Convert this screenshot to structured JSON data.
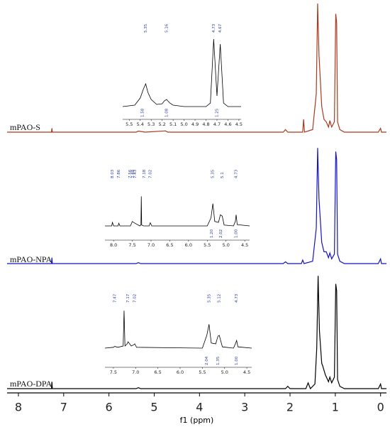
{
  "chart_data": [
    {
      "type": "line",
      "xlim": [
        8.25,
        -0.13
      ],
      "ylim": [
        0,
        100
      ],
      "series": [
        {
          "name": "mPAO-S",
          "color": "#a83a1e",
          "x": [
            8.25,
            7.27,
            7.26,
            7.25,
            5.4,
            5.35,
            5.2,
            4.75,
            4.7,
            2.15,
            2.1,
            2.05,
            1.72,
            1.7,
            1.68,
            1.5,
            1.42,
            1.39,
            1.36,
            1.3,
            1.25,
            1.2,
            1.15,
            1.12,
            1.08,
            1.02,
            0.99,
            0.97,
            0.95,
            0.9,
            0.8,
            0.05,
            0.0,
            -0.02,
            -0.13
          ],
          "values": [
            0,
            0,
            3,
            0,
            0,
            0.8,
            0,
            1,
            0,
            0,
            2,
            0,
            0,
            10,
            0,
            2,
            30,
            100,
            60,
            20,
            10,
            8,
            4,
            9,
            4,
            8,
            92,
            85,
            8,
            2,
            0,
            0,
            3,
            0,
            0
          ]
        }
      ]
    },
    {
      "type": "line",
      "xlim": [
        8.25,
        -0.13
      ],
      "ylim": [
        0,
        100
      ],
      "series": [
        {
          "name": "mPAO-NPA",
          "color": "#1414c0",
          "x": [
            8.25,
            7.27,
            7.26,
            7.25,
            5.4,
            5.35,
            5.3,
            2.15,
            2.1,
            2.05,
            1.75,
            1.72,
            1.69,
            1.5,
            1.42,
            1.39,
            1.36,
            1.3,
            1.25,
            1.2,
            1.15,
            1.12,
            1.08,
            1.02,
            0.99,
            0.97,
            0.95,
            0.9,
            0.8,
            0.05,
            0.0,
            -0.02,
            -0.13
          ],
          "values": [
            0,
            0,
            5,
            0,
            0,
            0.8,
            0,
            0,
            1.5,
            0,
            0,
            3,
            0,
            2,
            30,
            98,
            55,
            18,
            10,
            10,
            5,
            9,
            4,
            8,
            95,
            88,
            8,
            2,
            0,
            0,
            4,
            0,
            0
          ]
        }
      ]
    },
    {
      "type": "line",
      "xlim": [
        8.25,
        -0.13
      ],
      "ylim": [
        0,
        100
      ],
      "xticks": [
        8,
        7,
        6,
        5,
        4,
        3,
        2,
        1,
        0
      ],
      "xlabel": "f1 (ppm)",
      "series": [
        {
          "name": "mPAO-DPA",
          "color": "#000000",
          "x": [
            8.25,
            7.27,
            7.26,
            7.25,
            5.4,
            5.35,
            5.3,
            2.1,
            2.05,
            2.0,
            1.65,
            1.6,
            1.55,
            1.45,
            1.41,
            1.38,
            1.35,
            1.3,
            1.28,
            1.22,
            1.15,
            1.12,
            1.08,
            1.02,
            0.99,
            0.97,
            0.95,
            0.9,
            0.8,
            0.05,
            0.0,
            -0.02,
            -0.13
          ],
          "values": [
            0,
            0,
            6,
            0,
            0,
            0.8,
            0,
            0,
            2,
            0,
            0,
            5,
            0,
            4,
            35,
            98,
            50,
            22,
            20,
            12,
            6,
            10,
            5,
            10,
            91,
            85,
            8,
            2,
            0,
            0,
            4,
            0,
            0
          ]
        }
      ]
    },
    {
      "type": "line",
      "xlim": [
        5.56,
        4.48
      ],
      "ylim": [
        0,
        100
      ],
      "xticks": [
        5.5,
        5.4,
        5.3,
        5.2,
        5.1,
        {
          "value": 5,
          "label": "5.0"
        },
        4.9,
        4.8,
        4.7,
        4.6,
        4.5
      ],
      "peak_labels": [
        5.35,
        5.16,
        4.73,
        4.67
      ],
      "integrals": [
        {
          "x": 5.38,
          "label": "1.58"
        },
        {
          "x": 5.16,
          "label": "1.08"
        },
        {
          "x": 4.7,
          "label": "1.25"
        }
      ],
      "series": [
        {
          "color": "#000000",
          "x": [
            5.56,
            5.45,
            5.4,
            5.37,
            5.35,
            5.33,
            5.3,
            5.25,
            5.2,
            5.18,
            5.16,
            5.13,
            5.1,
            5.0,
            4.8,
            4.76,
            4.73,
            4.7,
            4.67,
            4.64,
            4.6,
            4.48
          ],
          "values": [
            0,
            2,
            12,
            25,
            32,
            20,
            10,
            3,
            4,
            8,
            10,
            5,
            2,
            0,
            0,
            5,
            95,
            15,
            88,
            5,
            0,
            0
          ]
        }
      ]
    },
    {
      "type": "line",
      "xlim": [
        8.23,
        4.37
      ],
      "ylim": [
        0,
        100
      ],
      "xticks": [
        {
          "value": 8,
          "label": "8.0"
        },
        7.5,
        {
          "value": 7,
          "label": "7.0"
        },
        6.5,
        {
          "value": 6,
          "label": "6.0"
        },
        5.5,
        {
          "value": 5,
          "label": "5.0"
        },
        4.5
      ],
      "peak_labels": [
        8.03,
        7.86,
        7.56,
        7.48,
        7.43,
        7.18,
        7.02,
        5.35,
        5.1,
        4.73
      ],
      "integrals": [
        {
          "x": 5.38,
          "label": "1.20"
        },
        {
          "x": 5.14,
          "label": "2.02"
        },
        {
          "x": 4.73,
          "label": "1.00"
        }
      ],
      "series": [
        {
          "color": "#000000",
          "x": [
            8.23,
            8.05,
            8.03,
            8.0,
            7.88,
            7.86,
            7.83,
            7.55,
            7.5,
            7.45,
            7.3,
            7.27,
            7.26,
            7.25,
            7.2,
            7.05,
            7.02,
            6.98,
            5.5,
            5.4,
            5.35,
            5.3,
            5.2,
            5.15,
            5.1,
            5.05,
            4.8,
            4.75,
            4.73,
            4.7,
            4.37
          ],
          "values": [
            0,
            0,
            8,
            0,
            0,
            6,
            0,
            0,
            10,
            7,
            0,
            2,
            66,
            2,
            0,
            0,
            7,
            0,
            0,
            18,
            50,
            10,
            8,
            25,
            22,
            2,
            0,
            10,
            25,
            3,
            0
          ]
        }
      ]
    },
    {
      "type": "line",
      "xlim": [
        7.69,
        4.39
      ],
      "ylim": [
        0,
        100
      ],
      "xticks": [
        7.5,
        {
          "value": 7,
          "label": "7.0"
        },
        6.5,
        {
          "value": 6,
          "label": "6.0"
        },
        5.5,
        {
          "value": 5,
          "label": "5.0"
        },
        4.5
      ],
      "peak_labels": [
        7.47,
        7.17,
        7.02,
        5.35,
        5.12,
        4.73
      ],
      "integrals": [
        {
          "x": 5.4,
          "label": "2.04"
        },
        {
          "x": 5.15,
          "label": "1.35"
        },
        {
          "x": 4.73,
          "label": "1.00"
        }
      ],
      "series": [
        {
          "color": "#000000",
          "x": [
            7.69,
            7.5,
            7.47,
            7.4,
            7.28,
            7.26,
            7.24,
            7.19,
            7.17,
            7.1,
            7.04,
            7.02,
            6.98,
            5.5,
            5.4,
            5.35,
            5.3,
            5.2,
            5.15,
            5.12,
            5.05,
            4.8,
            4.75,
            4.73,
            4.7,
            4.39
          ],
          "values": [
            0,
            2,
            4,
            2,
            5,
            88,
            5,
            10,
            15,
            5,
            8,
            10,
            2,
            0,
            30,
            56,
            12,
            10,
            28,
            30,
            3,
            0,
            12,
            18,
            3,
            0
          ]
        }
      ]
    }
  ]
}
